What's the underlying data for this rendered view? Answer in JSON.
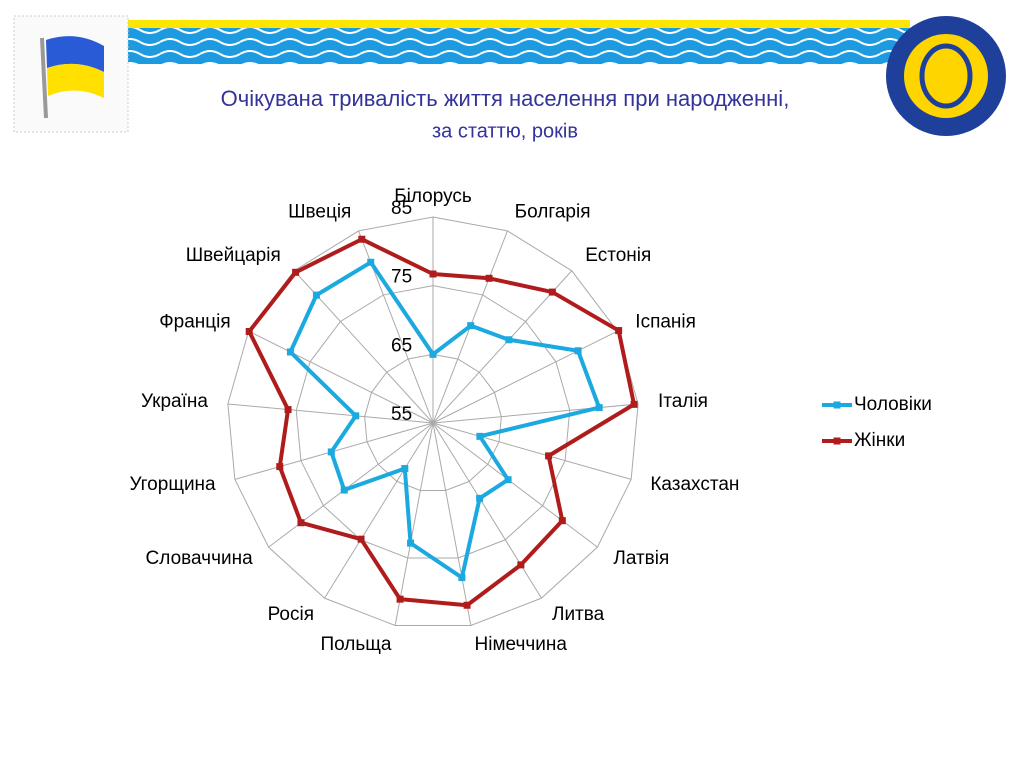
{
  "chart_data": {
    "type": "radar",
    "title": "Очікувана тривалість життя населення при народженні,",
    "subtitle": "за статтю, років",
    "categories": [
      "Білорусь",
      "Болгарія",
      "Естонія",
      "Іспанія",
      "Італія",
      "Казахстан",
      "Латвія",
      "Литва",
      "Німеччина",
      "Польща",
      "Росія",
      "Словаччина",
      "Угорщина",
      "Україна",
      "Франція",
      "Швейцарія",
      "Швеція"
    ],
    "series": [
      {
        "name": "Чоловіки",
        "color": "#1ba9e0",
        "values": [
          65.0,
          70.2,
          71.4,
          78.6,
          79.3,
          62.1,
          68.7,
          67.9,
          77.9,
          72.8,
          62.8,
          71.2,
          70.4,
          66.3,
          78.2,
          80.2,
          80.1
        ]
      },
      {
        "name": "Жінки",
        "color": "#b01c1c",
        "values": [
          76.7,
          77.6,
          80.8,
          85.2,
          84.4,
          72.5,
          78.6,
          79.3,
          82.0,
          81.1,
          74.9,
          79.1,
          78.2,
          76.2,
          84.9,
          84.7,
          83.7
        ]
      }
    ],
    "ylim": [
      55,
      85
    ],
    "yticks": [
      55,
      65,
      75,
      85
    ],
    "grid": true,
    "legend": "right"
  }
}
